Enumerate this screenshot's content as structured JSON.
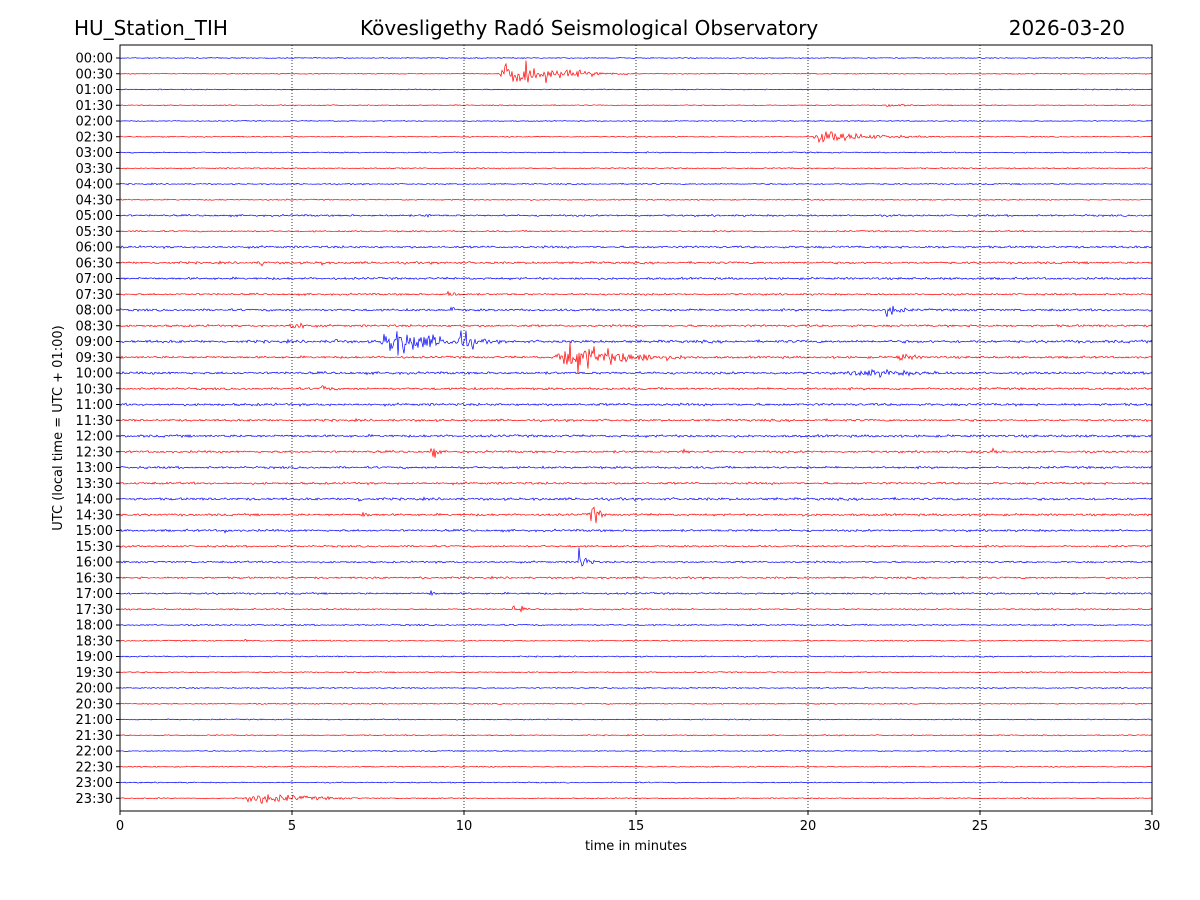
{
  "header": {
    "station": "HU_Station_TIH",
    "title": "Kövesligethy Radó Seismological Observatory",
    "date": "2026-03-20"
  },
  "chart_data": {
    "type": "line",
    "title": "Kövesligethy Radó Seismological Observatory",
    "xlabel": "time in minutes",
    "ylabel": "UTC (local time = UTC + 01:00)",
    "xlim": [
      0,
      30
    ],
    "xticks": [
      0,
      5,
      10,
      15,
      20,
      25,
      30
    ],
    "grid": "vertical dotted at 5-minute ticks",
    "colors": [
      "#0000ff",
      "#ff0000"
    ],
    "rows": [
      "00:00",
      "00:30",
      "01:00",
      "01:30",
      "02:00",
      "02:30",
      "03:00",
      "03:30",
      "04:00",
      "04:30",
      "05:00",
      "05:30",
      "06:00",
      "06:30",
      "07:00",
      "07:30",
      "08:00",
      "08:30",
      "09:00",
      "09:30",
      "10:00",
      "10:30",
      "11:00",
      "11:30",
      "12:00",
      "12:30",
      "13:00",
      "13:30",
      "14:00",
      "14:30",
      "15:00",
      "15:30",
      "16:00",
      "16:30",
      "17:00",
      "17:30",
      "18:00",
      "18:30",
      "19:00",
      "19:30",
      "20:00",
      "20:30",
      "21:00",
      "21:30",
      "22:00",
      "22:30",
      "23:00",
      "23:30"
    ],
    "noise": [
      0.8,
      0.8,
      0.8,
      0.8,
      0.8,
      0.8,
      1.0,
      1.0,
      1.0,
      1.0,
      1.5,
      1.2,
      1.8,
      1.8,
      1.8,
      1.5,
      1.8,
      1.8,
      2.2,
      1.8,
      2.0,
      1.8,
      2.0,
      1.8,
      2.0,
      1.8,
      1.8,
      1.8,
      2.0,
      1.8,
      1.8,
      1.5,
      1.5,
      1.5,
      1.5,
      1.2,
      1.2,
      1.0,
      1.0,
      1.0,
      1.0,
      1.0,
      0.9,
      0.9,
      0.9,
      0.9,
      0.9,
      0.9
    ],
    "events": [
      {
        "row": 1,
        "start": 11.0,
        "end": 15.0,
        "amp": 14
      },
      {
        "row": 3,
        "start": 22.2,
        "end": 24.0,
        "amp": 2
      },
      {
        "row": 5,
        "start": 20.1,
        "end": 24.5,
        "amp": 6
      },
      {
        "row": 10,
        "start": 8.8,
        "end": 9.5,
        "amp": 3
      },
      {
        "row": 13,
        "start": 4.0,
        "end": 4.6,
        "amp": 5
      },
      {
        "row": 13,
        "start": 5.8,
        "end": 6.3,
        "amp": 4
      },
      {
        "row": 15,
        "start": 9.4,
        "end": 10.5,
        "amp": 4
      },
      {
        "row": 16,
        "start": 9.6,
        "end": 10.0,
        "amp": 5
      },
      {
        "row": 16,
        "start": 22.2,
        "end": 23.5,
        "amp": 7
      },
      {
        "row": 17,
        "start": 4.9,
        "end": 6.2,
        "amp": 6
      },
      {
        "row": 18,
        "start": 6.2,
        "end": 6.5,
        "amp": 7
      },
      {
        "row": 18,
        "start": 7.5,
        "end": 12.0,
        "amp": 14
      },
      {
        "row": 18,
        "start": 9.8,
        "end": 11.0,
        "amp": 14
      },
      {
        "row": 19,
        "start": 12.6,
        "end": 17.5,
        "amp": 16
      },
      {
        "row": 19,
        "start": 22.5,
        "end": 24.5,
        "amp": 4
      },
      {
        "row": 20,
        "start": 21.0,
        "end": 28.0,
        "amp": 4
      },
      {
        "row": 21,
        "start": 5.8,
        "end": 6.6,
        "amp": 5
      },
      {
        "row": 25,
        "start": 9.0,
        "end": 9.5,
        "amp": 9
      },
      {
        "row": 25,
        "start": 16.3,
        "end": 17.0,
        "amp": 4
      },
      {
        "row": 25,
        "start": 25.3,
        "end": 25.8,
        "amp": 6
      },
      {
        "row": 28,
        "start": 6.9,
        "end": 7.3,
        "amp": 4
      },
      {
        "row": 29,
        "start": 7.0,
        "end": 7.8,
        "amp": 4
      },
      {
        "row": 29,
        "start": 13.6,
        "end": 14.2,
        "amp": 18
      },
      {
        "row": 30,
        "start": 3.0,
        "end": 3.5,
        "amp": 3
      },
      {
        "row": 30,
        "start": 18.3,
        "end": 18.6,
        "amp": 3
      },
      {
        "row": 32,
        "start": 13.3,
        "end": 13.9,
        "amp": 16
      },
      {
        "row": 33,
        "start": 8.7,
        "end": 9.0,
        "amp": 6
      },
      {
        "row": 34,
        "start": 9.0,
        "end": 9.4,
        "amp": 5
      },
      {
        "row": 35,
        "start": 11.4,
        "end": 11.6,
        "amp": 5
      },
      {
        "row": 35,
        "start": 11.6,
        "end": 12.0,
        "amp": 4
      },
      {
        "row": 37,
        "start": 3.6,
        "end": 4.2,
        "amp": 2
      },
      {
        "row": 47,
        "start": 3.5,
        "end": 8.0,
        "amp": 6
      }
    ]
  }
}
